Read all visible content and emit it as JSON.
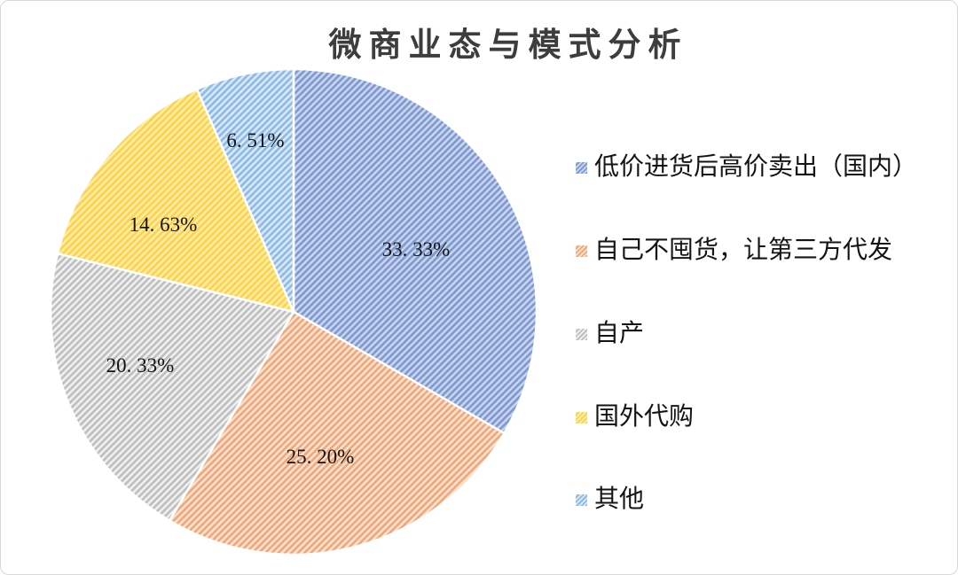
{
  "card": {
    "background": "#ffffff",
    "border_color": "#d9d9d9"
  },
  "title": {
    "text": "微商业态与模式分析",
    "color": "#3d3d3d"
  },
  "chart_data": {
    "type": "pie",
    "title": "微商业态与模式分析",
    "total": 100,
    "start_angle_deg": -90,
    "direction": "clockwise",
    "legend_position": "right",
    "slice_border_color": "#ffffff",
    "hatch": {
      "style": "diagonal-forward",
      "period": 5.2,
      "stripe_width": 2.7
    },
    "slices": [
      {
        "label": "低价进货后高价卖出（国内）",
        "value": 33.33,
        "display": "33. 33%",
        "base_color": "#c9d6ef",
        "stripe_color": "#8099cf",
        "label_pos": [
          468,
          281
        ]
      },
      {
        "label": "自己不囤货，让第三方代发",
        "value": 25.2,
        "display": "25. 20%",
        "base_color": "#fbe3d1",
        "stripe_color": "#efa87c",
        "label_pos": [
          360,
          515
        ]
      },
      {
        "label": "自产",
        "value": 20.33,
        "display": "20. 33%",
        "base_color": "#f1f1f1",
        "stripe_color": "#bfbfbf",
        "label_pos": [
          157,
          412
        ]
      },
      {
        "label": "国外代购",
        "value": 14.63,
        "display": "14. 63%",
        "base_color": "#ffedaa",
        "stripe_color": "#fdd34b",
        "label_pos": [
          183,
          253
        ]
      },
      {
        "label": "其他",
        "value": 6.51,
        "display": "6. 51%",
        "base_color": "#d8e9f8",
        "stripe_color": "#8fbae3",
        "label_pos": [
          287,
          158
        ]
      }
    ]
  }
}
